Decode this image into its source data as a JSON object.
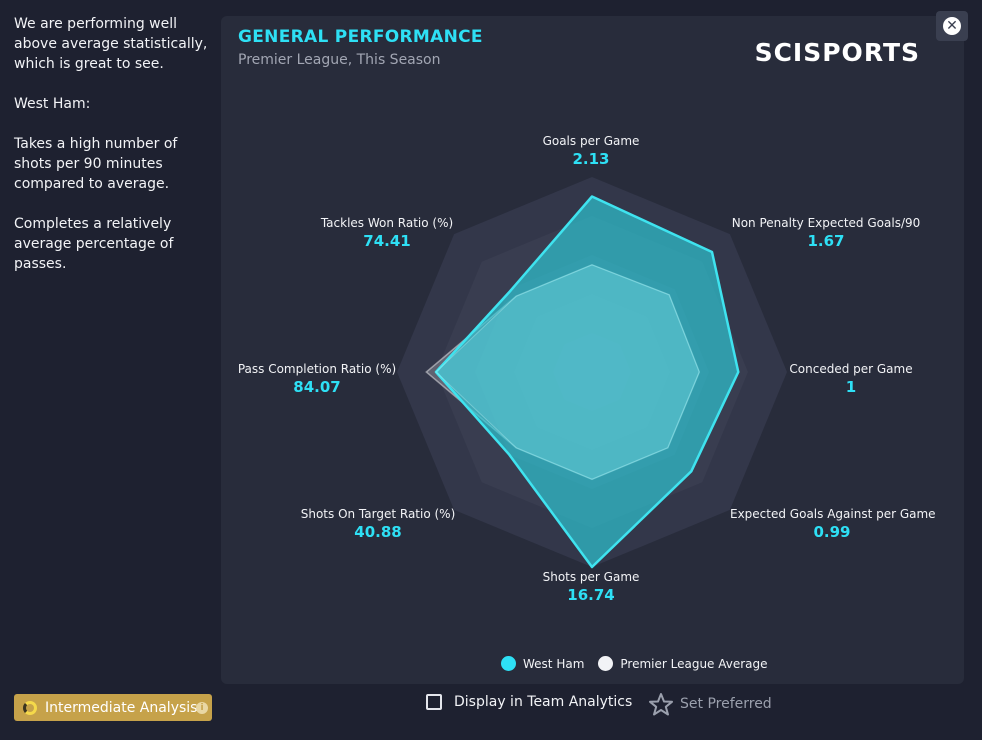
{
  "description": {
    "summary": "We are performing well above average statistically, which is great to see.",
    "team_heading": "West Ham:",
    "point1": "Takes a high number of shots per 90 minutes compared to average.",
    "point2": "Completes a relatively average percentage of passes."
  },
  "card": {
    "title": "GENERAL PERFORMANCE",
    "subtitle": "Premier League, This Season",
    "brand": "SCISPORTS"
  },
  "chart_data": {
    "type": "radar",
    "title": "GENERAL PERFORMANCE",
    "subtitle": "Premier League, This Season",
    "axes": [
      {
        "name": "Goals per Game",
        "display": "2.13",
        "value": 2.13,
        "team_norm": 0.9,
        "avg_norm": 0.55
      },
      {
        "name": "Non Penalty Expected Goals/90",
        "display": "1.67",
        "value": 1.67,
        "team_norm": 0.87,
        "avg_norm": 0.56
      },
      {
        "name": "Conceded per Game",
        "display": "1",
        "value": 1,
        "team_norm": 0.75,
        "avg_norm": 0.55
      },
      {
        "name": "Expected Goals Against per Game",
        "display": "0.99",
        "value": 0.99,
        "team_norm": 0.72,
        "avg_norm": 0.55
      },
      {
        "name": "Shots per Game",
        "display": "16.74",
        "value": 16.74,
        "team_norm": 1.0,
        "avg_norm": 0.55
      },
      {
        "name": "Shots On Target Ratio (%)",
        "display": "40.88",
        "value": 40.88,
        "team_norm": 0.6,
        "avg_norm": 0.55
      },
      {
        "name": "Pass Completion Ratio (%)",
        "display": "84.07",
        "value": 84.07,
        "team_norm": 0.8,
        "avg_norm": 0.85
      },
      {
        "name": "Tackles Won Ratio (%)",
        "display": "74.41",
        "value": 74.41,
        "team_norm": 0.59,
        "avg_norm": 0.55
      }
    ],
    "series": [
      {
        "name": "West Ham",
        "color": "#2ec8d6"
      },
      {
        "name": "Premier League Average",
        "color": "#ffffff"
      }
    ],
    "rings": 5
  },
  "legend": {
    "team": "West Ham",
    "average": "Premier League Average",
    "team_color": "#2ee0f5",
    "average_color": "#f2f3f6"
  },
  "footer": {
    "analysis_level": "Intermediate Analysis",
    "display_team_analytics": "Display in Team Analytics",
    "set_preferred": "Set Preferred"
  },
  "icons": {
    "close": "close-icon",
    "info": "info-icon",
    "star": "star-icon"
  }
}
